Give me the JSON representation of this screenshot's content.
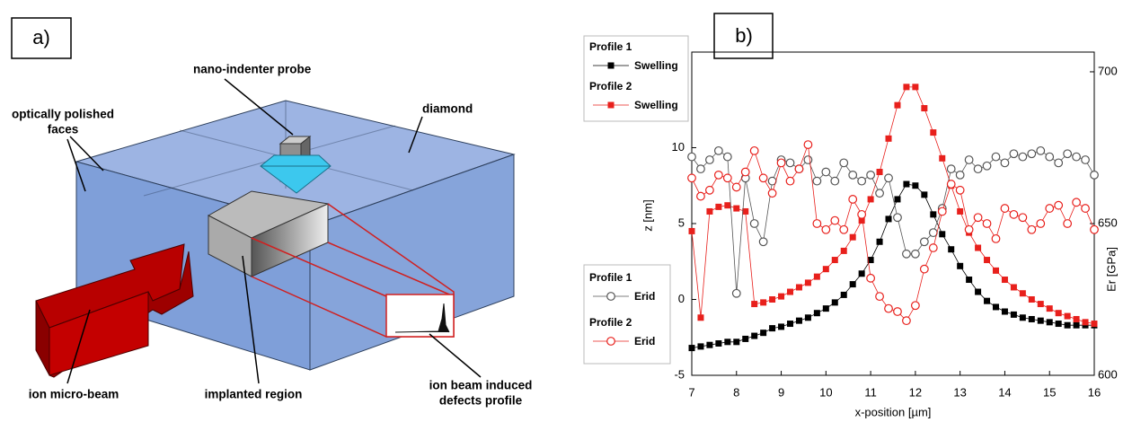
{
  "panel_a": {
    "label": "a)",
    "probe": "nano-indenter probe",
    "diamond": "diamond",
    "faces": [
      "optically polished",
      "faces"
    ],
    "beam": "ion micro-beam",
    "implanted": "implanted region",
    "defects": [
      "ion beam induced",
      "defects profile"
    ]
  },
  "chart_data": {
    "type": "line",
    "panel_label": "b)",
    "xlabel": "x-position [µm]",
    "ylabel": "z [nm]",
    "y2label": "Er [GPa]",
    "xlim": [
      7,
      16
    ],
    "xticks": [
      7,
      8,
      9,
      10,
      11,
      12,
      13,
      14,
      15,
      16
    ],
    "ylim": [
      -5,
      16.3
    ],
    "yticks": [
      -5,
      0,
      5,
      10
    ],
    "y2lim": [
      600,
      706.5
    ],
    "y2ticks": [
      600,
      650,
      700
    ],
    "x": [
      7.0,
      7.2,
      7.4,
      7.6,
      7.8,
      8.0,
      8.2,
      8.4,
      8.6,
      8.8,
      9.0,
      9.2,
      9.4,
      9.6,
      9.8,
      10.0,
      10.2,
      10.4,
      10.6,
      10.8,
      11.0,
      11.2,
      11.4,
      11.6,
      11.8,
      12.0,
      12.2,
      12.4,
      12.6,
      12.8,
      13.0,
      13.2,
      13.4,
      13.6,
      13.8,
      14.0,
      14.2,
      14.4,
      14.6,
      14.8,
      15.0,
      15.2,
      15.4,
      15.6,
      15.8,
      16.0
    ],
    "series": [
      {
        "name": "Swelling",
        "group": "Profile 1",
        "color": "#000000",
        "marker": "square",
        "axis": "y",
        "values": [
          -3.2,
          -3.1,
          -3.0,
          -2.9,
          -2.8,
          -2.8,
          -2.6,
          -2.4,
          -2.2,
          -1.9,
          -1.8,
          -1.6,
          -1.4,
          -1.2,
          -0.9,
          -0.6,
          -0.2,
          0.3,
          1.0,
          1.7,
          2.6,
          3.8,
          5.3,
          6.6,
          7.6,
          7.5,
          6.9,
          5.6,
          4.3,
          3.3,
          2.2,
          1.3,
          0.5,
          -0.1,
          -0.5,
          -0.8,
          -1.0,
          -1.2,
          -1.3,
          -1.4,
          -1.5,
          -1.6,
          -1.7,
          -1.7,
          -1.7,
          -1.7
        ]
      },
      {
        "name": "Swelling",
        "group": "Profile 2",
        "color": "#e8201c",
        "marker": "square",
        "axis": "y",
        "values": [
          4.5,
          -1.2,
          5.8,
          6.1,
          6.2,
          6.0,
          5.8,
          -0.3,
          -0.2,
          0.0,
          0.2,
          0.5,
          0.8,
          1.1,
          1.5,
          2.0,
          2.6,
          3.2,
          4.1,
          5.2,
          6.6,
          8.4,
          10.6,
          12.8,
          14.0,
          14.0,
          12.6,
          11.0,
          9.3,
          7.5,
          5.8,
          4.4,
          3.4,
          2.6,
          1.9,
          1.3,
          0.8,
          0.4,
          0.0,
          -0.3,
          -0.6,
          -0.9,
          -1.1,
          -1.3,
          -1.5,
          -1.6
        ]
      },
      {
        "name": "Erid",
        "group": "Profile 1",
        "color": "#555555",
        "marker": "circle",
        "axis": "y2",
        "values": [
          672,
          668,
          671,
          674,
          672,
          627,
          665,
          650,
          644,
          664,
          671,
          670,
          668,
          671,
          664,
          667,
          664,
          670,
          666,
          664,
          666,
          660,
          665,
          652,
          640,
          640,
          644,
          647,
          655,
          668,
          666,
          671,
          668,
          669,
          672,
          670,
          673,
          672,
          673,
          674,
          672,
          670,
          673,
          672,
          671,
          666
        ]
      },
      {
        "name": "Erid",
        "group": "Profile 2",
        "color": "#e8201c",
        "marker": "circle",
        "axis": "y2",
        "values": [
          665,
          659,
          661,
          666,
          665,
          662,
          667,
          674,
          665,
          660,
          670,
          664,
          668,
          676,
          650,
          648,
          651,
          648,
          658,
          653,
          632,
          626,
          622,
          621,
          618,
          623,
          635,
          642,
          654,
          663,
          661,
          648,
          652,
          650,
          645,
          655,
          653,
          652,
          648,
          650,
          655,
          656,
          650,
          657,
          655,
          648
        ]
      }
    ]
  }
}
